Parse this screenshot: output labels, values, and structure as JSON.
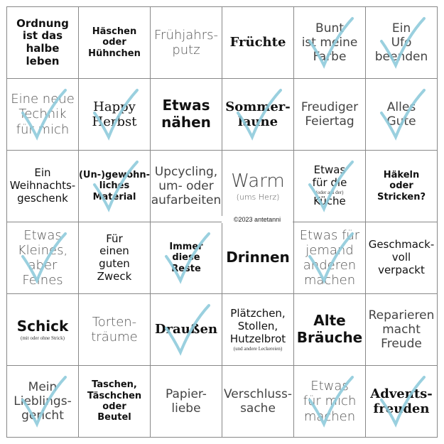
{
  "check_color": "#8fcbdc",
  "copyright": "©2023 antetanni",
  "cells": [
    {
      "text": "Ordnung\nist das\nhalbe\nleben",
      "style": "f0",
      "checked": false
    },
    {
      "text": "Häschen\noder\nHühnchen",
      "style": "f1",
      "checked": false
    },
    {
      "text": "Frühjahrs-\nputz",
      "style": "f2",
      "checked": false
    },
    {
      "text": "Früchte",
      "style": "f3",
      "checked": false
    },
    {
      "text": "Bunt\nist meine\nFarbe",
      "style": "f6",
      "checked": true
    },
    {
      "text": "Ein\nUfo\nbeenden",
      "style": "f6",
      "checked": true
    },
    {
      "text": "Eine neue\nTechnik\nfür mich",
      "style": "f2",
      "checked": true
    },
    {
      "text": "Happy\nHerbst",
      "style": "f7",
      "checked": true
    },
    {
      "text": "Etwas\nnähen",
      "style": "f5",
      "checked": false
    },
    {
      "text": "Sommer-\nlaune",
      "style": "f3",
      "checked": true
    },
    {
      "text": "Freudiger\nFeiertag",
      "style": "f6",
      "checked": false
    },
    {
      "text": "Alles\nGute",
      "style": "f6",
      "checked": true
    },
    {
      "text": "Ein\nWeihnachts-\ngeschenk",
      "style": "f4",
      "checked": false
    },
    {
      "text": "(Un-)gewöhn-\nliches\nMaterial",
      "style": "f1",
      "checked": true
    },
    {
      "text": "Upcycling,\num- oder\naufarbeiten",
      "style": "f6",
      "checked": false
    },
    {
      "text": "Warm",
      "sub": "(ums Herz)",
      "style": "f8",
      "checked": false
    },
    {
      "text": "Etwas\nfür die",
      "sub": "(oder aus der)",
      "text2": "Küche",
      "style": "f4",
      "checked": true
    },
    {
      "text": "Häkeln\noder\nStricken?",
      "style": "f1",
      "checked": false
    },
    {
      "text": "Etwas\nKleines,\naber\nFeines",
      "style": "f2",
      "checked": true
    },
    {
      "text": "Für\neinen\nguten\nZweck",
      "style": "f4",
      "checked": false
    },
    {
      "text": "Immer\ndiese\nReste",
      "style": "f1",
      "checked": true
    },
    {
      "text": "Drinnen",
      "style": "f5",
      "checked": false
    },
    {
      "text": "Etwas für\njemand\nanderen\nmachen",
      "style": "f2",
      "checked": true
    },
    {
      "text": "Geschmack-\nvoll\nverpackt",
      "style": "f4",
      "checked": false
    },
    {
      "text": "Schick",
      "sub": "(mit oder ohne Strick)",
      "style": "f5",
      "checked": false
    },
    {
      "text": "Torten-\nträume",
      "style": "f2",
      "checked": false
    },
    {
      "text": "Draußen",
      "style": "f3",
      "checked": true
    },
    {
      "text": "Plätzchen,\nStollen,\nHutzelbrot",
      "sub": "(und andere Leckereien)",
      "style": "f4",
      "checked": false
    },
    {
      "text": "Alte\nBräuche",
      "style": "f5",
      "checked": false
    },
    {
      "text": "Reparieren\nmacht\nFreude",
      "style": "f6",
      "checked": false
    },
    {
      "text": "Mein\nLieblings-\ngericht",
      "style": "f6",
      "checked": true
    },
    {
      "text": "Taschen,\nTäschchen\noder\nBeutel",
      "style": "f1",
      "checked": false
    },
    {
      "text": "Papier-\nliebe",
      "style": "f6",
      "checked": false
    },
    {
      "text": "Verschluss-\nsache",
      "style": "f6",
      "checked": false
    },
    {
      "text": "Etwas\nfür mich\nmachen",
      "style": "f2",
      "checked": true
    },
    {
      "text": "Advents-\nfreuden",
      "style": "f3",
      "checked": true
    }
  ]
}
